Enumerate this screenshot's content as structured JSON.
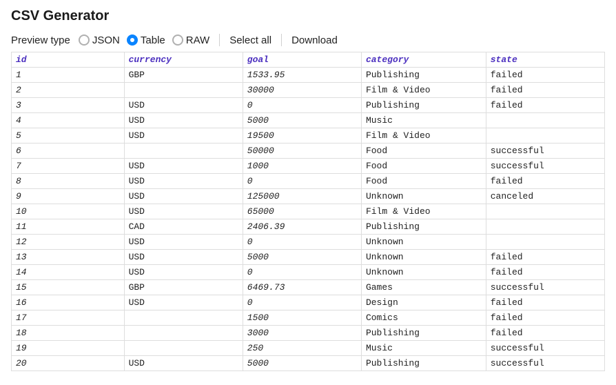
{
  "title": "CSV Generator",
  "toolbar": {
    "preview_type_label": "Preview type",
    "options": {
      "json": "JSON",
      "table": "Table",
      "raw": "RAW"
    },
    "selected": "table",
    "select_all": "Select all",
    "download": "Download"
  },
  "table": {
    "header_color": "#4b2fbf",
    "border_color": "#dddddd",
    "font_family": "Courier New, monospace",
    "columns": [
      {
        "key": "id",
        "label": "id",
        "italic_values": true
      },
      {
        "key": "currency",
        "label": "currency",
        "italic_values": false
      },
      {
        "key": "goal",
        "label": "goal",
        "italic_values": true
      },
      {
        "key": "category",
        "label": "category",
        "italic_values": false
      },
      {
        "key": "state",
        "label": "state",
        "italic_values": false
      }
    ],
    "rows": [
      {
        "id": "1",
        "currency": "GBP",
        "goal": "1533.95",
        "category": "Publishing",
        "state": "failed"
      },
      {
        "id": "2",
        "currency": "",
        "goal": "30000",
        "category": "Film & Video",
        "state": "failed"
      },
      {
        "id": "3",
        "currency": "USD",
        "goal": "0",
        "category": "Publishing",
        "state": "failed"
      },
      {
        "id": "4",
        "currency": "USD",
        "goal": "5000",
        "category": "Music",
        "state": ""
      },
      {
        "id": "5",
        "currency": "USD",
        "goal": "19500",
        "category": "Film & Video",
        "state": ""
      },
      {
        "id": "6",
        "currency": "",
        "goal": "50000",
        "category": "Food",
        "state": "successful"
      },
      {
        "id": "7",
        "currency": "USD",
        "goal": "1000",
        "category": "Food",
        "state": "successful"
      },
      {
        "id": "8",
        "currency": "USD",
        "goal": "0",
        "category": "Food",
        "state": "failed"
      },
      {
        "id": "9",
        "currency": "USD",
        "goal": "125000",
        "category": "Unknown",
        "state": "canceled"
      },
      {
        "id": "10",
        "currency": "USD",
        "goal": "65000",
        "category": "Film & Video",
        "state": ""
      },
      {
        "id": "11",
        "currency": "CAD",
        "goal": "2406.39",
        "category": "Publishing",
        "state": ""
      },
      {
        "id": "12",
        "currency": "USD",
        "goal": "0",
        "category": "Unknown",
        "state": ""
      },
      {
        "id": "13",
        "currency": "USD",
        "goal": "5000",
        "category": "Unknown",
        "state": "failed"
      },
      {
        "id": "14",
        "currency": "USD",
        "goal": "0",
        "category": "Unknown",
        "state": "failed"
      },
      {
        "id": "15",
        "currency": "GBP",
        "goal": "6469.73",
        "category": "Games",
        "state": "successful"
      },
      {
        "id": "16",
        "currency": "USD",
        "goal": "0",
        "category": "Design",
        "state": "failed"
      },
      {
        "id": "17",
        "currency": "",
        "goal": "1500",
        "category": "Comics",
        "state": "failed"
      },
      {
        "id": "18",
        "currency": "",
        "goal": "3000",
        "category": "Publishing",
        "state": "failed"
      },
      {
        "id": "19",
        "currency": "",
        "goal": "250",
        "category": "Music",
        "state": "successful"
      },
      {
        "id": "20",
        "currency": "USD",
        "goal": "5000",
        "category": "Publishing",
        "state": "successful"
      }
    ]
  }
}
